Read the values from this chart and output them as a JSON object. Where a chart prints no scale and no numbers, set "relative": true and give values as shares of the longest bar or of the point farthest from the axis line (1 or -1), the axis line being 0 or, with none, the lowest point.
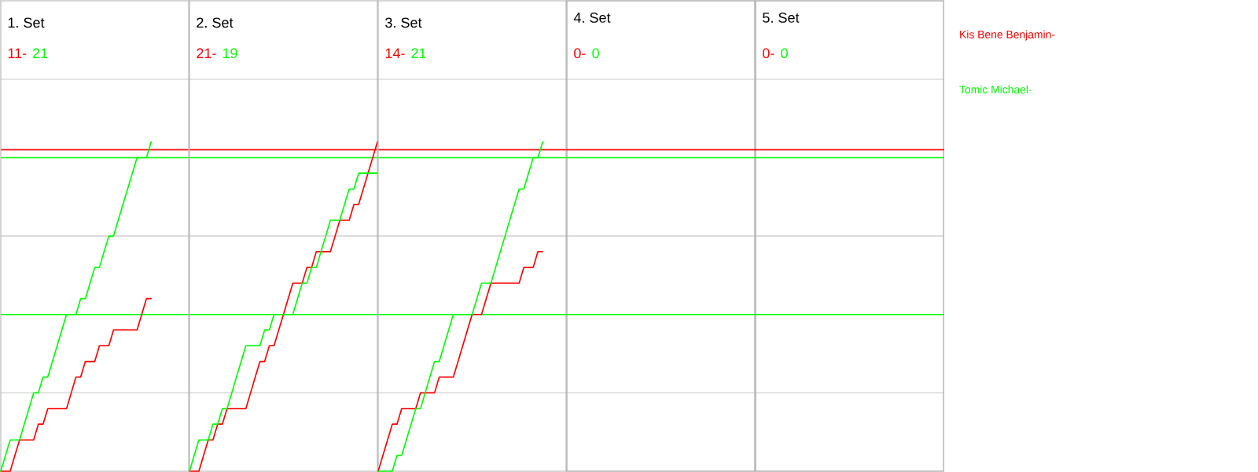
{
  "chart_data": [
    {
      "type": "line",
      "title": "1. Set",
      "relative": true,
      "legend": "right",
      "grid": "y",
      "categories": [
        null,
        null,
        null,
        null,
        null,
        null,
        null,
        null,
        null,
        null,
        null,
        null,
        null,
        null,
        null,
        null,
        null,
        null,
        null,
        null,
        null,
        null,
        null,
        null,
        null,
        null,
        null,
        null,
        null,
        null,
        null,
        null,
        null,
        null,
        null,
        null,
        null,
        null,
        null,
        null,
        null
      ],
      "series": [
        {
          "name": "Kis Bene Benjamin-",
          "color": "#ff0000",
          "values": [
            0,
            0,
            0,
            0.048,
            0.095,
            0.095,
            0.095,
            0.095,
            0.143,
            0.143,
            0.19,
            0.19,
            0.19,
            0.19,
            0.19,
            0.238,
            0.286,
            0.286,
            0.333,
            0.333,
            0.333,
            0.381,
            0.381,
            0.381,
            0.429,
            0.429,
            0.429,
            0.429,
            0.429,
            0.429,
            0.476,
            0.524,
            0.524,
            null,
            null,
            null,
            null,
            null,
            null,
            null,
            null
          ]
        },
        {
          "name": "Tomic Michael-",
          "color": "#00ff00",
          "values": [
            0,
            0.048,
            0.095,
            0.095,
            0.095,
            0.143,
            0.19,
            0.238,
            0.238,
            0.286,
            0.286,
            0.333,
            0.381,
            0.429,
            0.476,
            0.476,
            0.476,
            0.524,
            0.524,
            0.571,
            0.619,
            0.619,
            0.667,
            0.714,
            0.714,
            0.762,
            0.81,
            0.857,
            0.905,
            0.952,
            0.952,
            0.952,
            1,
            null,
            null,
            null,
            null,
            null,
            null,
            null,
            null
          ]
        }
      ],
      "annotations": [
        "11-",
        "21"
      ],
      "ref_lines": [
        {
          "axis": "y",
          "value": 0.976,
          "color": "#ff0000"
        },
        {
          "axis": "y",
          "value": 0.952,
          "color": "#00ff00"
        },
        {
          "axis": "y",
          "value": 0.476,
          "color": "#00ff00"
        }
      ]
    },
    {
      "type": "line",
      "title": "2. Set",
      "relative": true,
      "grid": "y",
      "categories": [
        null,
        null,
        null,
        null,
        null,
        null,
        null,
        null,
        null,
        null,
        null,
        null,
        null,
        null,
        null,
        null,
        null,
        null,
        null,
        null,
        null,
        null,
        null,
        null,
        null,
        null,
        null,
        null,
        null,
        null,
        null,
        null,
        null,
        null,
        null,
        null,
        null,
        null,
        null,
        null,
        null
      ],
      "series": [
        {
          "color": "#ff0000",
          "values": [
            0,
            0,
            0,
            0.048,
            0.095,
            0.095,
            0.143,
            0.143,
            0.19,
            0.19,
            0.19,
            0.19,
            0.19,
            0.238,
            0.286,
            0.333,
            0.333,
            0.381,
            0.381,
            0.429,
            0.476,
            0.524,
            0.571,
            0.571,
            0.571,
            0.619,
            0.619,
            0.667,
            0.667,
            0.667,
            0.667,
            0.714,
            0.762,
            0.762,
            0.762,
            0.81,
            0.81,
            0.857,
            0.905,
            0.952,
            1
          ]
        },
        {
          "color": "#00ff00",
          "values": [
            0,
            0.048,
            0.095,
            0.095,
            0.095,
            0.143,
            0.143,
            0.19,
            0.19,
            0.238,
            0.286,
            0.333,
            0.381,
            0.381,
            0.381,
            0.381,
            0.429,
            0.429,
            0.476,
            0.476,
            0.476,
            0.476,
            0.476,
            0.524,
            0.571,
            0.571,
            0.619,
            0.619,
            0.667,
            0.714,
            0.762,
            0.762,
            0.762,
            0.81,
            0.857,
            0.857,
            0.905,
            0.905,
            0.905,
            0.905,
            0.905
          ]
        }
      ],
      "annotations": [
        "21-",
        "19"
      ],
      "ref_lines": [
        {
          "axis": "y",
          "value": 0.976,
          "color": "#ff0000"
        },
        {
          "axis": "y",
          "value": 0.952,
          "color": "#00ff00"
        },
        {
          "axis": "y",
          "value": 0.476,
          "color": "#00ff00"
        }
      ]
    },
    {
      "type": "line",
      "title": "3. Set",
      "relative": true,
      "grid": "y",
      "categories": [
        null,
        null,
        null,
        null,
        null,
        null,
        null,
        null,
        null,
        null,
        null,
        null,
        null,
        null,
        null,
        null,
        null,
        null,
        null,
        null,
        null,
        null,
        null,
        null,
        null,
        null,
        null,
        null,
        null,
        null,
        null,
        null,
        null,
        null,
        null,
        null,
        null,
        null,
        null,
        null,
        null
      ],
      "series": [
        {
          "color": "#ff0000",
          "values": [
            0,
            0.048,
            0.095,
            0.143,
            0.143,
            0.19,
            0.19,
            0.19,
            0.19,
            0.238,
            0.238,
            0.238,
            0.238,
            0.286,
            0.286,
            0.286,
            0.286,
            0.333,
            0.381,
            0.429,
            0.476,
            0.476,
            0.476,
            0.524,
            0.571,
            0.571,
            0.571,
            0.571,
            0.571,
            0.571,
            0.571,
            0.619,
            0.619,
            0.619,
            0.667,
            0.667,
            null,
            null,
            null,
            null,
            null
          ]
        },
        {
          "color": "#00ff00",
          "values": [
            0,
            0,
            0,
            0,
            0.048,
            0.048,
            0.095,
            0.143,
            0.19,
            0.19,
            0.238,
            0.286,
            0.333,
            0.333,
            0.381,
            0.429,
            0.476,
            0.476,
            0.476,
            0.476,
            0.476,
            0.524,
            0.571,
            0.571,
            0.571,
            0.619,
            0.667,
            0.714,
            0.762,
            0.81,
            0.857,
            0.857,
            0.905,
            0.952,
            0.952,
            1,
            null,
            null,
            null,
            null,
            null
          ]
        }
      ],
      "annotations": [
        "14-",
        "21"
      ],
      "ref_lines": [
        {
          "axis": "y",
          "value": 0.976,
          "color": "#ff0000"
        },
        {
          "axis": "y",
          "value": 0.952,
          "color": "#00ff00"
        },
        {
          "axis": "y",
          "value": 0.476,
          "color": "#00ff00"
        }
      ]
    },
    {
      "type": "other",
      "title": "4. Set",
      "series": [
        {
          "color": "#ff0000"
        },
        {
          "color": "#00ff00"
        }
      ],
      "annotations": [
        "0-",
        "0"
      ]
    },
    {
      "type": "other",
      "title": "5. Set",
      "series": [
        {
          "color": "#ff0000"
        },
        {
          "color": "#00ff00"
        }
      ],
      "annotations": [
        "0-",
        "0"
      ]
    }
  ]
}
